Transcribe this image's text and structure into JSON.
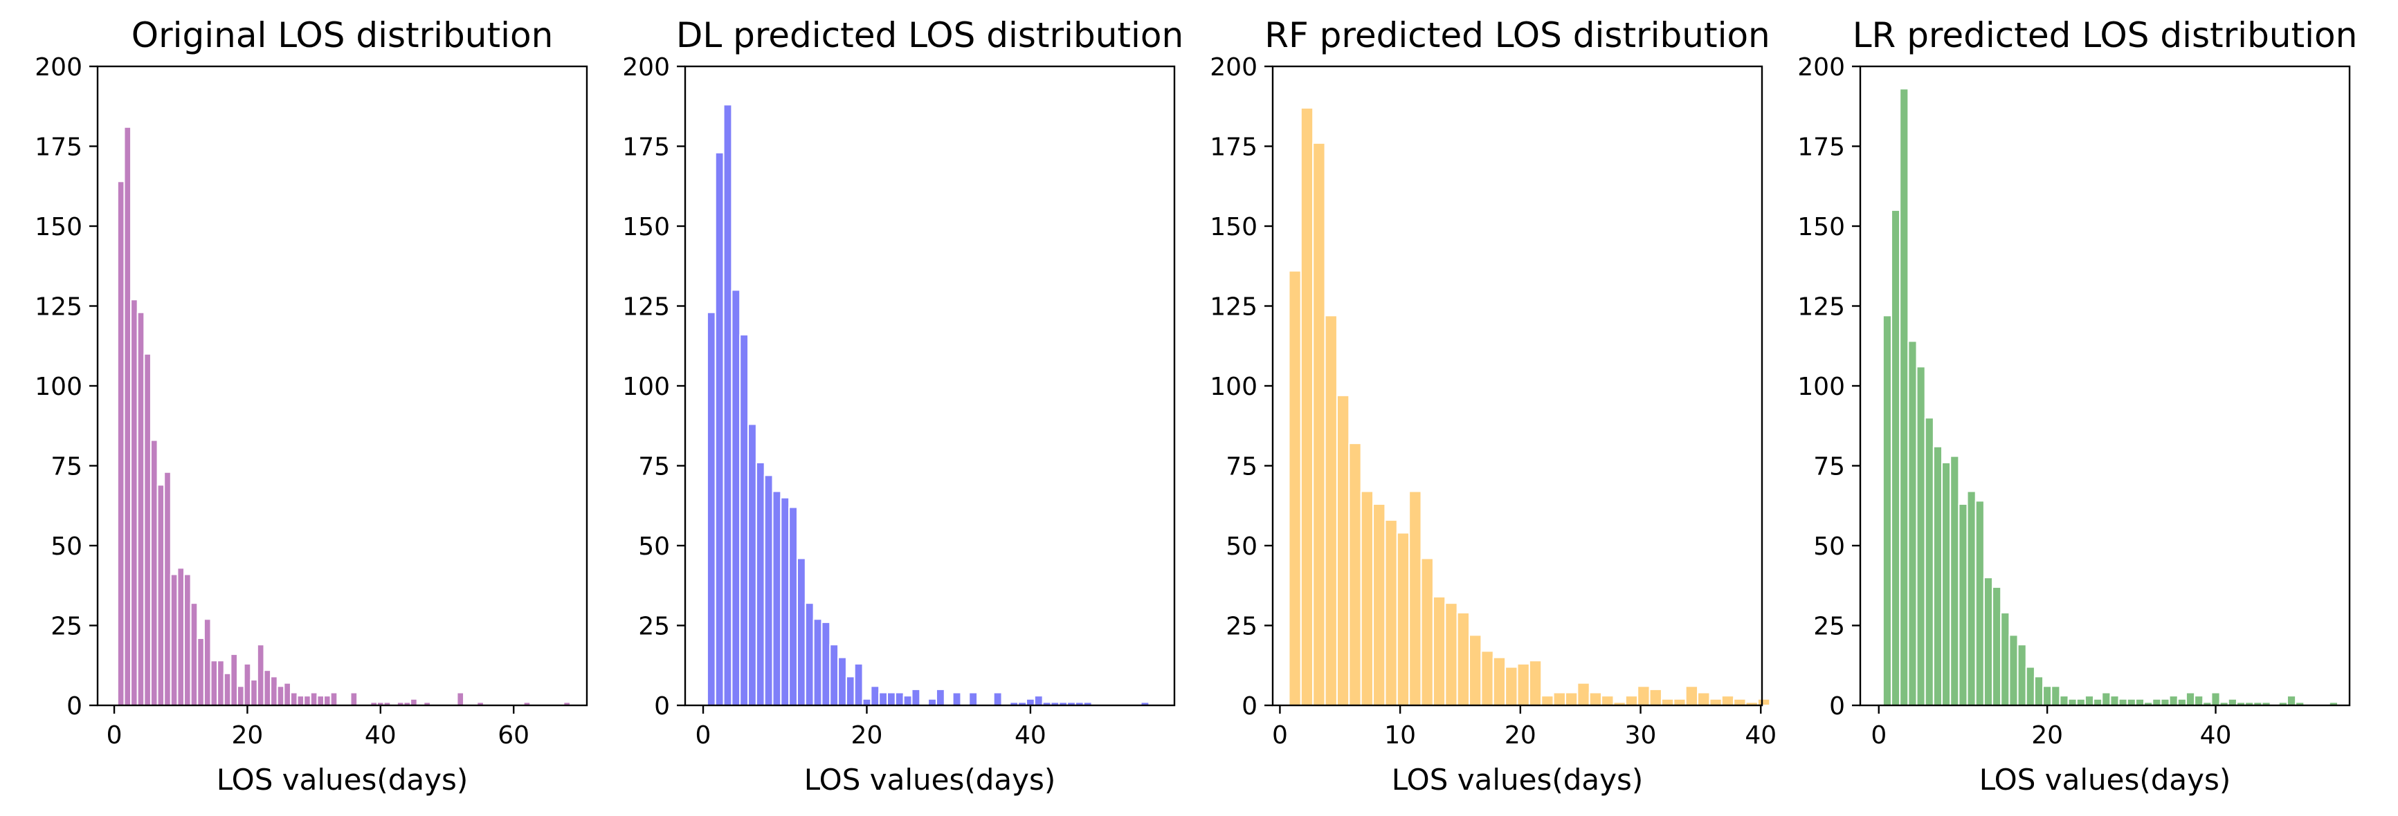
{
  "chart_data": [
    {
      "type": "bar",
      "title": "Original LOS distribution",
      "xlabel": "LOS values(days)",
      "ylabel": "",
      "xlim": [
        -2.5,
        71
      ],
      "ylim": [
        0,
        200
      ],
      "xticks": [
        0,
        20,
        40,
        60
      ],
      "yticks": [
        0,
        25,
        50,
        75,
        100,
        125,
        150,
        175,
        200
      ],
      "color": "#bf7fbf",
      "bin_start": 0.5,
      "bin_width": 1.0,
      "values": [
        164,
        181,
        127,
        123,
        110,
        83,
        69,
        73,
        41,
        43,
        41,
        32,
        21,
        27,
        14,
        14,
        10,
        16,
        6,
        13,
        8,
        19,
        11,
        9,
        6,
        7,
        4,
        3,
        3,
        4,
        3,
        3,
        4,
        0,
        0,
        4,
        0,
        0,
        1,
        1,
        1,
        0,
        1,
        1,
        2,
        0,
        1,
        0,
        0,
        0,
        0,
        4,
        0,
        0,
        1,
        0,
        0,
        0,
        0,
        0,
        0,
        1,
        0,
        0,
        0,
        0,
        0,
        1
      ]
    },
    {
      "type": "bar",
      "title": "DL predicted LOS distribution",
      "xlabel": "LOS values(days)",
      "ylabel": "",
      "xlim": [
        -2.2,
        57.6
      ],
      "ylim": [
        0,
        200
      ],
      "xticks": [
        0,
        20,
        40
      ],
      "yticks": [
        0,
        25,
        50,
        75,
        100,
        125,
        150,
        175,
        200
      ],
      "color": "#7f7ff9",
      "bin_start": 0.5,
      "bin_width": 1.0,
      "values": [
        123,
        173,
        188,
        130,
        116,
        88,
        76,
        72,
        67,
        65,
        62,
        46,
        32,
        27,
        26,
        19,
        15,
        9,
        13,
        2,
        6,
        4,
        4,
        4,
        3,
        5,
        0,
        2,
        5,
        0,
        4,
        0,
        4,
        0,
        0,
        4,
        0,
        1,
        1,
        2,
        3,
        1,
        1,
        1,
        1,
        1,
        1,
        0,
        0,
        0,
        0,
        0,
        0,
        1
      ]
    },
    {
      "type": "bar",
      "title": "RF predicted LOS distribution",
      "xlabel": "LOS values(days)",
      "ylabel": "",
      "xlim": [
        -0.6,
        40.1
      ],
      "ylim": [
        0,
        200
      ],
      "xticks": [
        0,
        10,
        20,
        30,
        40
      ],
      "yticks": [
        0,
        25,
        50,
        75,
        100,
        125,
        150,
        175,
        200
      ],
      "color": "#ffd080",
      "bin_start": 0.75,
      "bin_width": 1.0,
      "values": [
        136,
        187,
        176,
        122,
        97,
        82,
        67,
        63,
        58,
        54,
        67,
        46,
        34,
        32,
        29,
        22,
        17,
        15,
        12,
        13,
        14,
        3,
        4,
        4,
        7,
        4,
        3,
        1,
        3,
        6,
        5,
        2,
        2,
        6,
        4,
        2,
        3,
        2,
        1,
        2
      ]
    },
    {
      "type": "bar",
      "title": "LR predicted LOS distribution",
      "xlabel": "LOS values(days)",
      "ylabel": "",
      "xlim": [
        -2.2,
        55.9
      ],
      "ylim": [
        0,
        200
      ],
      "xticks": [
        0,
        20,
        40
      ],
      "yticks": [
        0,
        25,
        50,
        75,
        100,
        125,
        150,
        175,
        200
      ],
      "color": "#7fbf7f",
      "bin_start": 0.5,
      "bin_width": 1.0,
      "values": [
        122,
        155,
        193,
        114,
        106,
        90,
        81,
        76,
        78,
        63,
        67,
        64,
        40,
        37,
        29,
        22,
        19,
        12,
        9,
        6,
        6,
        3,
        2,
        2,
        3,
        2,
        4,
        3,
        2,
        2,
        2,
        1,
        2,
        2,
        3,
        2,
        4,
        3,
        1,
        4,
        1,
        2,
        1,
        1,
        1,
        1,
        0,
        1,
        3,
        1,
        0,
        0,
        0,
        1
      ]
    }
  ]
}
